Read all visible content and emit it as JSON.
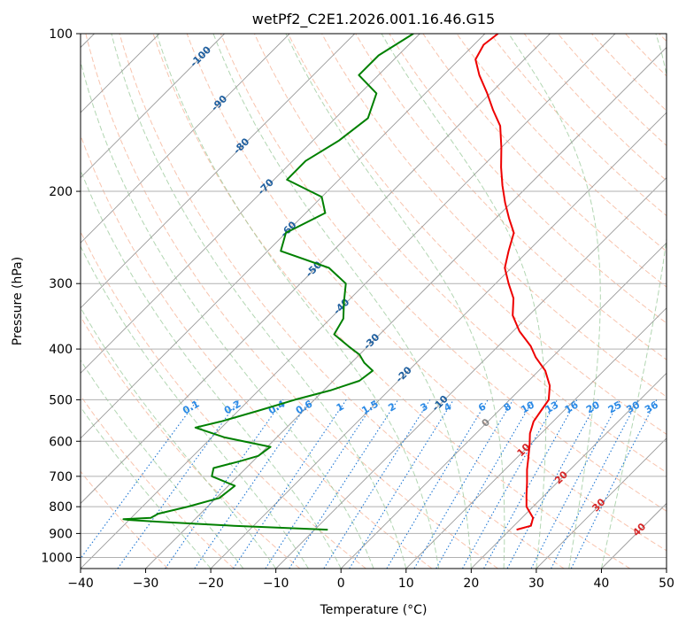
{
  "chart_data": {
    "type": "line",
    "title": "wetPf2_C2E1.2026.001.16.46.G15",
    "xlabel": "Temperature (°C)",
    "ylabel": "Pressure (hPa)",
    "xlim": [
      -40,
      50
    ],
    "ylim": [
      1050,
      100
    ],
    "y_scale": "log",
    "grid": true,
    "x_ticks": [
      -40,
      -30,
      -20,
      -10,
      0,
      10,
      20,
      30,
      40,
      50
    ],
    "y_ticks": [
      1000,
      900,
      800,
      700,
      600,
      500,
      400,
      300,
      200,
      100
    ],
    "skew_t": true,
    "colors": {
      "temperature": "#ee0000",
      "dewpoint": "#008000",
      "isotherm": "#888888",
      "dry_adiabat": "#f4a582",
      "moist_adiabat": "#92c592",
      "mixing_ratio": "#1f77d4",
      "isotherm_label": "#1f5f9f",
      "mixing_label": "#2b8ae6",
      "moist_label": "#d62728",
      "grid": "#b0b0b0"
    },
    "series": [
      {
        "key": "temperature",
        "p": [
          885,
          870,
          840,
          800,
          760,
          720,
          680,
          650,
          610,
          580,
          550,
          520,
          500,
          470,
          440,
          415,
          395,
          370,
          345,
          320,
          300,
          280,
          260,
          240,
          225,
          210,
          195,
          180,
          165,
          150,
          140,
          130,
          120,
          112,
          105,
          100
        ],
        "x": [
          21.0,
          22.6,
          21.7,
          19.0,
          17.2,
          15.4,
          13.4,
          12.0,
          10.0,
          8.3,
          7.0,
          6.4,
          6.0,
          4.0,
          1.0,
          -2.5,
          -5.0,
          -9.0,
          -12.5,
          -15.0,
          -18.0,
          -21.0,
          -23.0,
          -25.0,
          -28.0,
          -31.0,
          -34.0,
          -37.0,
          -40.0,
          -43.5,
          -47.0,
          -50.5,
          -54.5,
          -57.5,
          -58.5,
          -58.0
        ]
      },
      {
        "key": "dewpoint",
        "p": [
          885,
          870,
          855,
          848,
          845,
          840,
          825,
          800,
          770,
          730,
          700,
          675,
          655,
          640,
          615,
          590,
          565,
          550,
          525,
          500,
          480,
          460,
          440,
          425,
          410,
          395,
          375,
          350,
          325,
          300,
          280,
          260,
          240,
          220,
          205,
          190,
          175,
          160,
          145,
          130,
          120,
          110,
          100
        ],
        "x": [
          -8.0,
          -23.0,
          -35.0,
          -40.0,
          -41.0,
          -37.0,
          -36.5,
          -33.0,
          -29.5,
          -29.0,
          -34.0,
          -35.0,
          -32.0,
          -30.0,
          -29.5,
          -38.0,
          -44.0,
          -41.0,
          -37.0,
          -33.0,
          -29.0,
          -26.0,
          -25.5,
          -28.0,
          -30.0,
          -33.0,
          -37.0,
          -38.0,
          -40.5,
          -43.0,
          -48.0,
          -58.0,
          -60.0,
          -57.0,
          -60.0,
          -68.0,
          -68.0,
          -66.0,
          -65.0,
          -67.5,
          -73.0,
          -73.0,
          -71.0
        ]
      }
    ],
    "isotherm_labels": [
      "-100",
      "-90",
      "-80",
      "-70",
      "-60",
      "-50",
      "-40",
      "-30",
      "-20",
      "-10"
    ],
    "isotherm_label_values": [
      -100,
      -90,
      -80,
      -70,
      -60,
      -50,
      -40,
      -30,
      -20,
      -10
    ],
    "isotherm_label_pressures": [
      110,
      135,
      163,
      195,
      235,
      280,
      330,
      385,
      445,
      505
    ],
    "mixing_ratio_labels": [
      "0.1",
      "0.2",
      "0.4",
      "0.6",
      "1",
      "1.5",
      "2",
      "3",
      "4",
      "6",
      "8",
      "10",
      "13",
      "16",
      "20",
      "25",
      "30",
      "36"
    ],
    "mixing_ratio_values": [
      0.1,
      0.2,
      0.4,
      0.6,
      1,
      1.5,
      2,
      3,
      4,
      6,
      8,
      10,
      13,
      16,
      20,
      25,
      30,
      36
    ],
    "moist_adiabat_labels": [
      "0",
      "10",
      "20",
      "30",
      "40"
    ],
    "moist_adiabat_label_positions": [
      {
        "t": 0,
        "p": 550,
        "color": "isotherm"
      },
      {
        "t": 10,
        "p": 620,
        "color": "moist_label"
      },
      {
        "t": 20,
        "p": 700,
        "color": "moist_label"
      },
      {
        "t": 30,
        "p": 790,
        "color": "moist_label"
      },
      {
        "t": 40,
        "p": 880,
        "color": "moist_label"
      }
    ]
  }
}
